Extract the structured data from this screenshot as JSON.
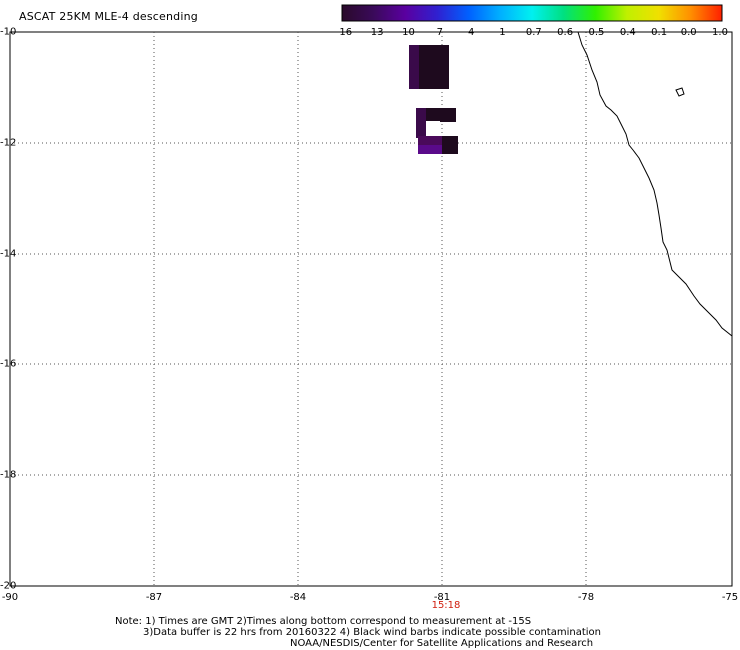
{
  "title": "ASCAT 25KM MLE-4 descending",
  "colorbar": {
    "labels": [
      "-16",
      "-13",
      "-10",
      "-7",
      "-4",
      "-1",
      "-0.7",
      "-0.6",
      "-0.5",
      "-0.4",
      "-0.1",
      "0.0",
      "1.0"
    ],
    "colors": [
      "#2a0a2a",
      "#3a0a5a",
      "#5a00a0",
      "#3020d0",
      "#0060ff",
      "#00b0ff",
      "#00f0f0",
      "#00e080",
      "#30f000",
      "#c0f000",
      "#f0e000",
      "#ff9000",
      "#ff2000"
    ]
  },
  "axes": {
    "lat_labels": [
      "-10",
      "-12",
      "-14",
      "-16",
      "-18",
      "-20"
    ],
    "lon_labels": [
      "-90",
      "-87",
      "-84",
      "-81",
      "-78",
      "-75"
    ]
  },
  "time_label": "15:18",
  "notes": {
    "line1": "Note: 1) Times are GMT 2)Times along bottom correspond to measurement at -15S",
    "line2": "3)Data buffer is 22 hrs from 20160322 4) Black wind barbs indicate possible contamination",
    "line3": "NOAA/NESDIS/Center for Satellite Applications and Research"
  }
}
